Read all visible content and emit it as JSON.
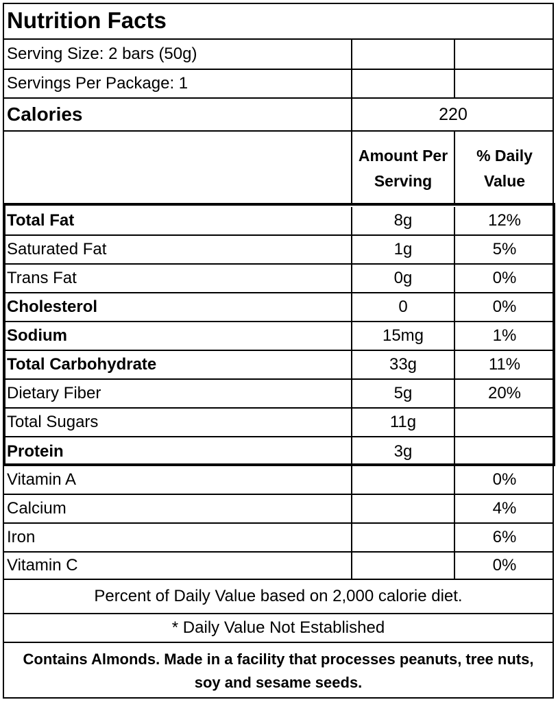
{
  "title": "Nutrition Facts",
  "serving_size": "Serving Size: 2 bars (50g)",
  "servings_per_package": "Servings Per Package: 1",
  "calories": {
    "label": "Calories",
    "value": "220"
  },
  "columns": {
    "amount": "Amount Per Serving",
    "daily_value": "% Daily Value"
  },
  "nutrients": [
    {
      "name": "Total Fat",
      "amount": "8g",
      "dv": "12%",
      "bold": true
    },
    {
      "name": "Saturated Fat",
      "amount": "1g",
      "dv": "5%",
      "bold": false
    },
    {
      "name": "Trans Fat",
      "amount": "0g",
      "dv": "0%",
      "bold": false
    },
    {
      "name": "Cholesterol",
      "amount": "0",
      "dv": "0%",
      "bold": true
    },
    {
      "name": "Sodium",
      "amount": "15mg",
      "dv": "1%",
      "bold": true
    },
    {
      "name": "Total Carbohydrate",
      "amount": "33g",
      "dv": "11%",
      "bold": true
    },
    {
      "name": "Dietary Fiber",
      "amount": "5g",
      "dv": "20%",
      "bold": false
    },
    {
      "name": "Total Sugars",
      "amount": "11g",
      "dv": "",
      "bold": false
    },
    {
      "name": "Protein",
      "amount": "3g",
      "dv": "",
      "bold": true
    }
  ],
  "vitamins": [
    {
      "name": "Vitamin A",
      "dv": "0%"
    },
    {
      "name": "Calcium",
      "dv": "4%"
    },
    {
      "name": "Iron",
      "dv": "6%"
    },
    {
      "name": "Vitamin C",
      "dv": "0%"
    }
  ],
  "notes": {
    "daily_value_basis": "Percent of Daily Value based on 2,000 calorie diet.",
    "not_established": "* Daily Value Not Established"
  },
  "allergen_statement": "Contains Almonds.  Made in a facility that processes peanuts, tree nuts, soy and sesame seeds."
}
